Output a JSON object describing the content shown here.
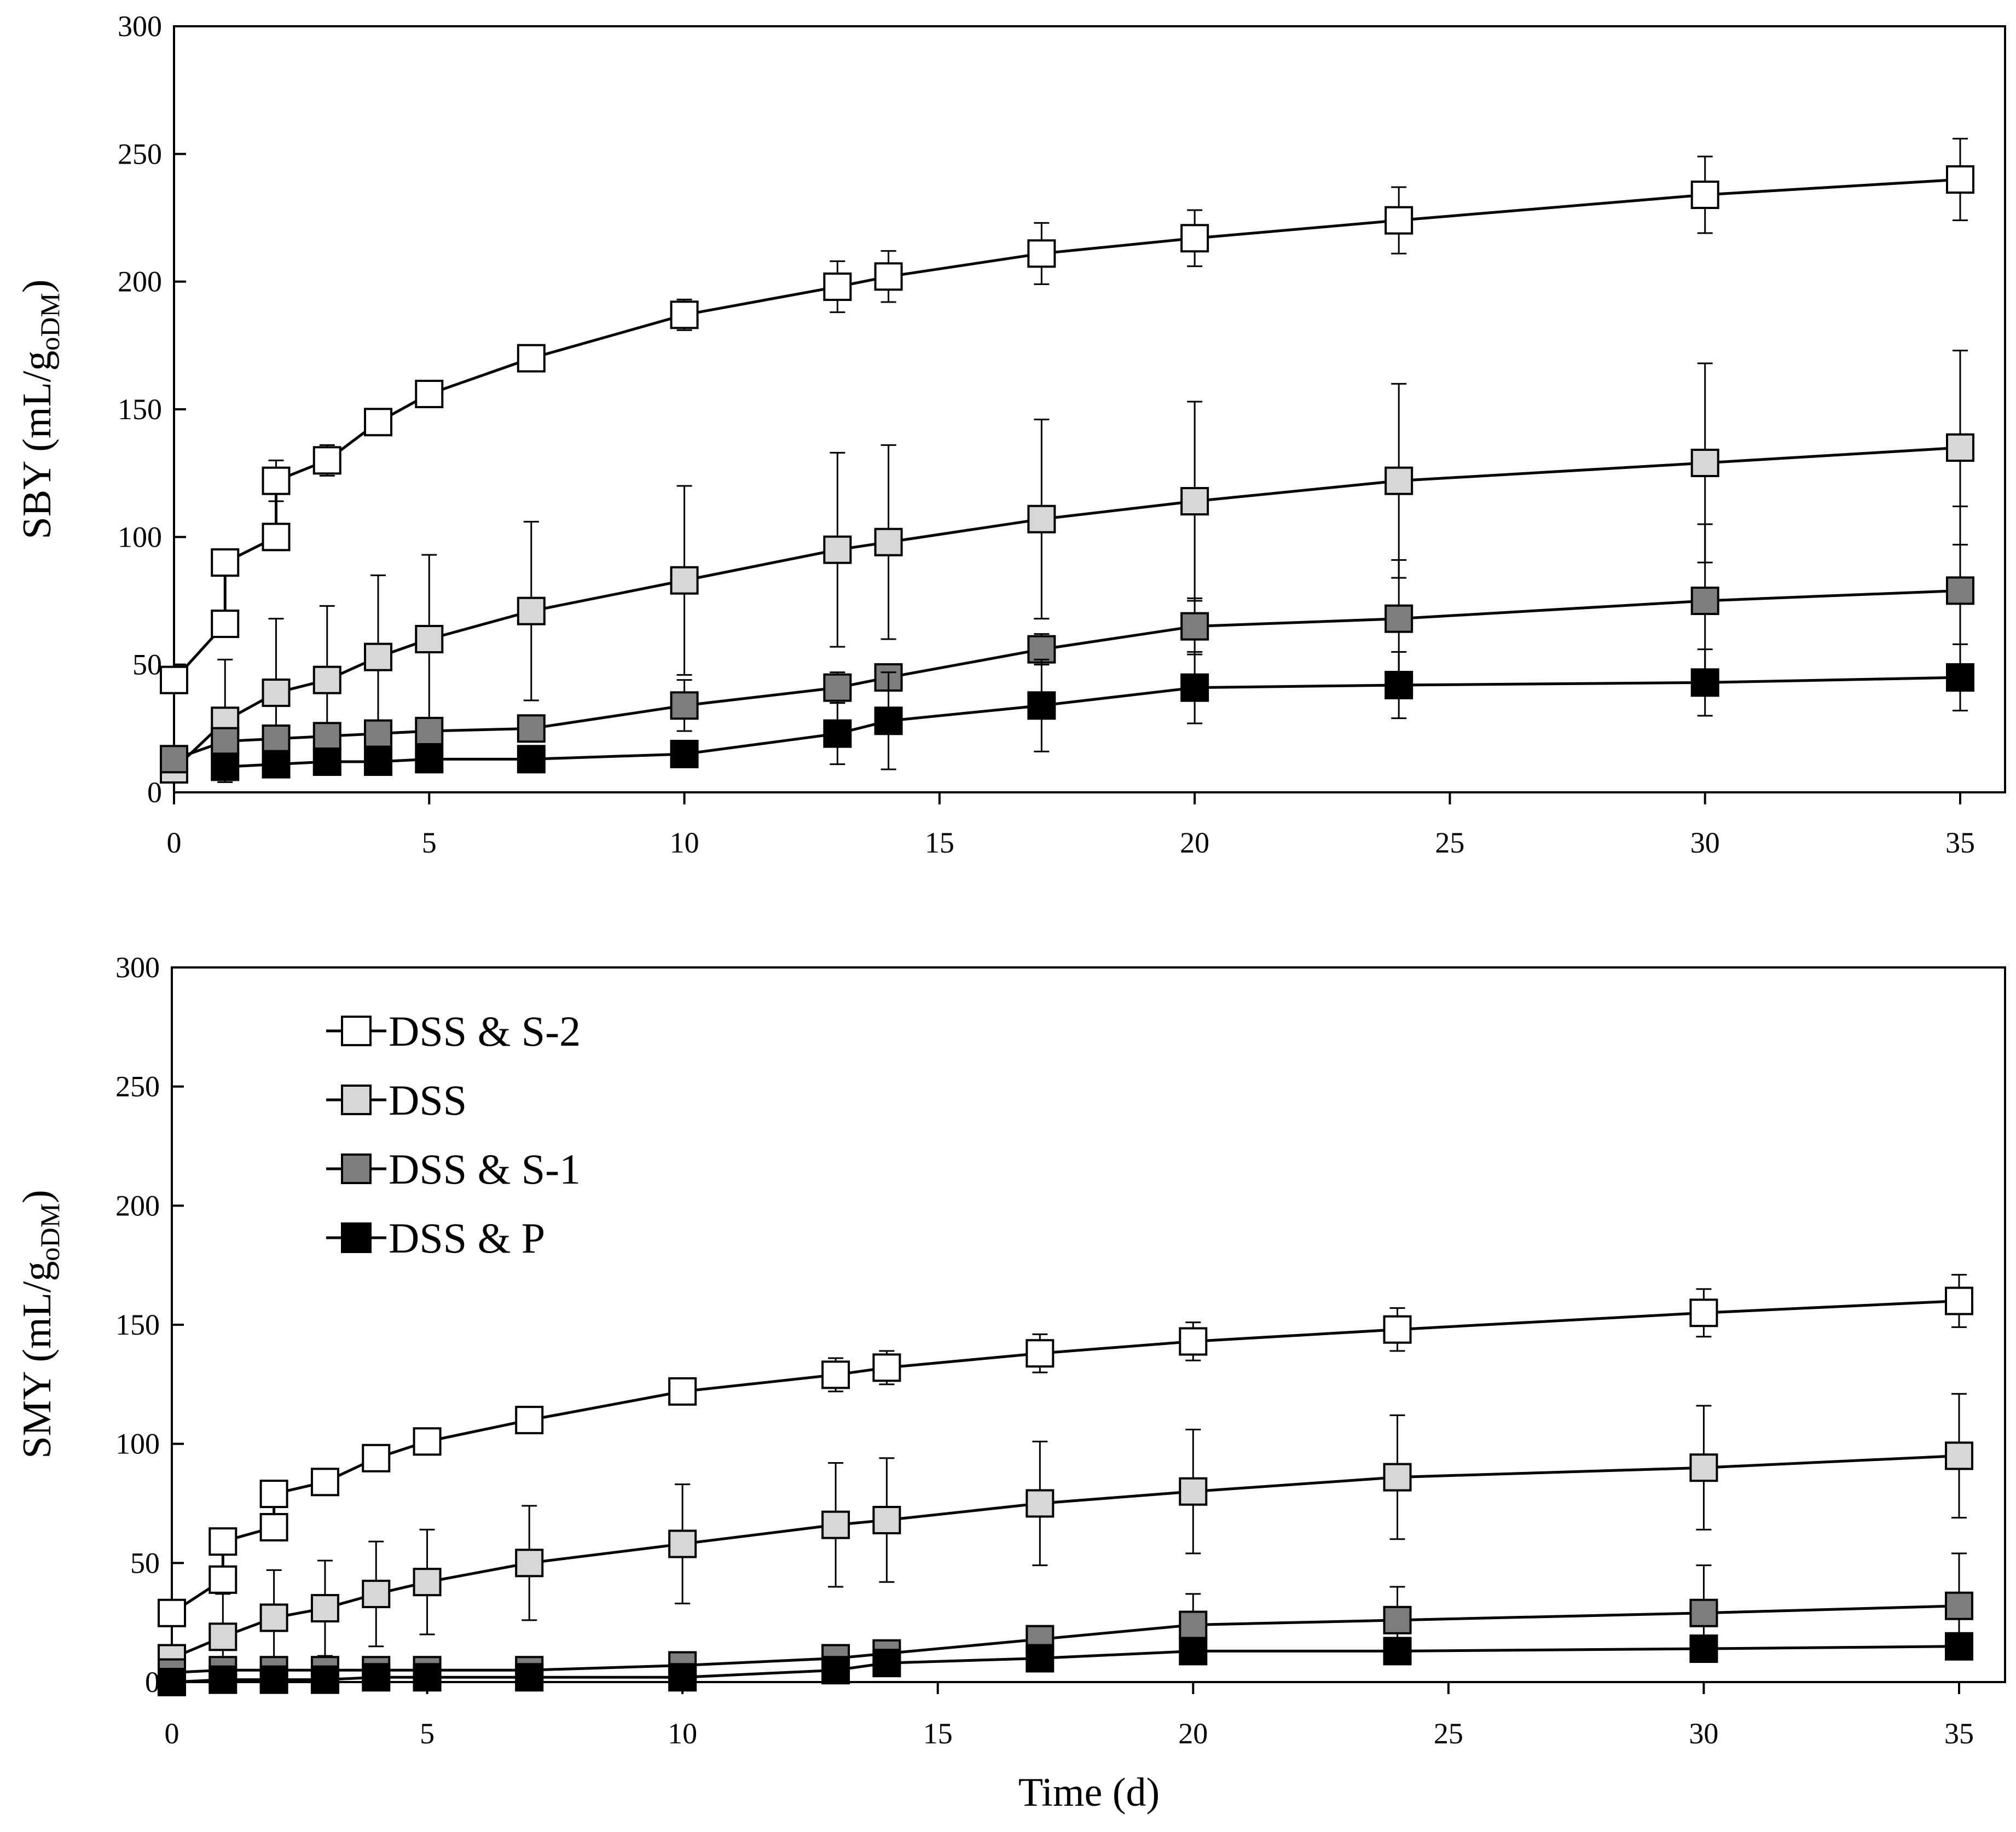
{
  "chart_data": [
    {
      "type": "line",
      "id": "sby",
      "title": "",
      "xlabel": "",
      "ylabel": "SBY (mL/g",
      "ylabel_subscript": "oDM",
      "ylabel_suffix": ")",
      "xlim": [
        0,
        35
      ],
      "ylim": [
        0,
        300
      ],
      "xticks": [
        0,
        5,
        10,
        15,
        20,
        25,
        30,
        35
      ],
      "yticks": [
        0,
        50,
        100,
        150,
        200,
        250,
        300
      ],
      "grid": false,
      "series": [
        {
          "name": "DSS & S-2",
          "fill": "#ffffff",
          "x": [
            0,
            1,
            1,
            2,
            2,
            3,
            4,
            5,
            7,
            10,
            13,
            14,
            17,
            20,
            24,
            30,
            35
          ],
          "y": [
            44,
            66,
            90,
            100,
            122,
            130,
            145,
            156,
            170,
            187,
            198,
            202,
            211,
            217,
            224,
            234,
            240
          ],
          "err": [
            0,
            0,
            0,
            0,
            8,
            6,
            0,
            0,
            0,
            6,
            10,
            10,
            12,
            11,
            13,
            15,
            16
          ]
        },
        {
          "name": "DSS",
          "fill": "#d7d7d7",
          "x": [
            0,
            1,
            2,
            3,
            4,
            5,
            7,
            10,
            13,
            14,
            17,
            20,
            24,
            30,
            35
          ],
          "y": [
            9,
            28,
            39,
            44,
            53,
            60,
            71,
            83,
            95,
            98,
            107,
            114,
            122,
            129,
            135
          ],
          "err": [
            5,
            24,
            29,
            29,
            32,
            33,
            35,
            37,
            38,
            38,
            39,
            39,
            38,
            39,
            38
          ]
        },
        {
          "name": "DSS & S-1",
          "fill": "#7d7d7d",
          "x": [
            0,
            1,
            2,
            3,
            4,
            5,
            7,
            10,
            13,
            14,
            17,
            20,
            24,
            30,
            35
          ],
          "y": [
            13,
            20,
            21,
            22,
            23,
            24,
            25,
            34,
            41,
            45,
            56,
            65,
            68,
            75,
            79
          ],
          "err": [
            2,
            3,
            3,
            3,
            3,
            3,
            3,
            10,
            6,
            0,
            6,
            11,
            23,
            30,
            33
          ]
        },
        {
          "name": "DSS & P",
          "fill": "#000000",
          "x": [
            1,
            2,
            3,
            4,
            5,
            7,
            10,
            13,
            14,
            17,
            20,
            24,
            30,
            35
          ],
          "y": [
            10,
            11,
            12,
            12,
            13,
            13,
            15,
            23,
            28,
            34,
            41,
            42,
            43,
            45
          ],
          "err": [
            2,
            2,
            2,
            2,
            2,
            2,
            2,
            12,
            19,
            18,
            14,
            13,
            13,
            13
          ]
        }
      ]
    },
    {
      "type": "line",
      "id": "smy",
      "title": "",
      "xlabel": "Time (d)",
      "ylabel": "SMY (mL/g",
      "ylabel_subscript": "oDM",
      "ylabel_suffix": ")",
      "xlim": [
        0,
        35
      ],
      "ylim": [
        0,
        300
      ],
      "xticks": [
        0,
        5,
        10,
        15,
        20,
        25,
        30,
        35
      ],
      "yticks": [
        0,
        50,
        100,
        150,
        200,
        250,
        300
      ],
      "grid": false,
      "legend": {
        "position": "top-left",
        "entries": [
          "DSS & S-2",
          "DSS",
          "DSS & S-1",
          "DSS & P"
        ]
      },
      "series": [
        {
          "name": "DSS & S-2",
          "fill": "#ffffff",
          "x": [
            0,
            1,
            1,
            2,
            2,
            3,
            4,
            5,
            7,
            10,
            13,
            14,
            17,
            20,
            24,
            30,
            35
          ],
          "y": [
            29,
            43,
            59,
            65,
            79,
            84,
            94,
            101,
            110,
            122,
            129,
            132,
            138,
            143,
            148,
            155,
            160
          ],
          "err": [
            0,
            0,
            0,
            0,
            0,
            0,
            0,
            0,
            0,
            0,
            7,
            7,
            8,
            8,
            9,
            10,
            11
          ]
        },
        {
          "name": "DSS",
          "fill": "#d7d7d7",
          "x": [
            0,
            1,
            2,
            3,
            4,
            5,
            7,
            10,
            13,
            14,
            17,
            20,
            24,
            30,
            35
          ],
          "y": [
            10,
            19,
            27,
            31,
            37,
            42,
            50,
            58,
            66,
            68,
            75,
            80,
            86,
            90,
            95
          ],
          "err": [
            4,
            18,
            20,
            20,
            22,
            22,
            24,
            25,
            26,
            26,
            26,
            26,
            26,
            26,
            26
          ]
        },
        {
          "name": "DSS & S-1",
          "fill": "#7d7d7d",
          "x": [
            0,
            1,
            2,
            3,
            4,
            5,
            7,
            10,
            13,
            14,
            17,
            20,
            24,
            30,
            35
          ],
          "y": [
            4,
            5,
            5,
            5,
            5,
            5,
            5,
            7,
            10,
            12,
            18,
            24,
            26,
            29,
            32
          ],
          "err": [
            1,
            1,
            1,
            1,
            1,
            1,
            1,
            2,
            3,
            3,
            4,
            13,
            14,
            20,
            22
          ]
        },
        {
          "name": "DSS & P",
          "fill": "#000000",
          "x": [
            0,
            1,
            2,
            3,
            4,
            5,
            7,
            10,
            13,
            14,
            17,
            20,
            24,
            30,
            35
          ],
          "y": [
            0,
            1,
            1,
            1,
            2,
            2,
            2,
            2,
            5,
            8,
            10,
            13,
            13,
            14,
            15
          ],
          "err": [
            0,
            0,
            0,
            0,
            0,
            0,
            0,
            0,
            2,
            3,
            4,
            5,
            5,
            5,
            5
          ]
        }
      ]
    }
  ]
}
